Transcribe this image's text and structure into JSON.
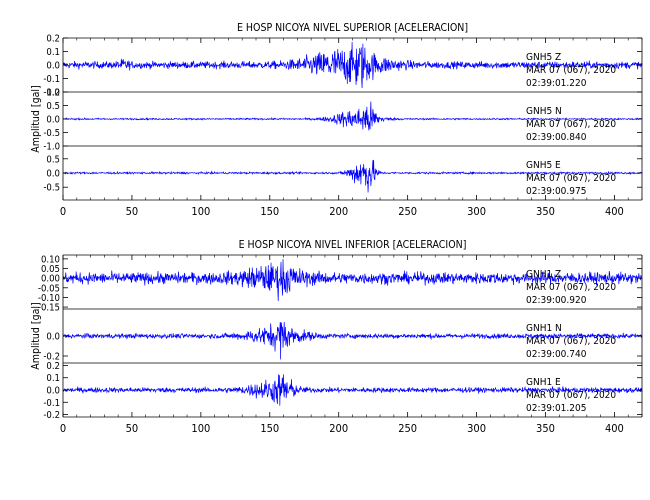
{
  "chart_data": [
    {
      "type": "line",
      "title": "E HOSP NICOYA NIVEL SUPERIOR [ACELERACION]",
      "ylabel": "Amplitud [gal]",
      "xlim": [
        0,
        420
      ],
      "x_ticks": [
        0,
        50,
        100,
        150,
        200,
        250,
        300,
        350,
        400
      ],
      "line_color": "#0000ff",
      "traces": [
        {
          "station": "GNH5",
          "component": "Z",
          "date": "MAR 07 (067), 2020",
          "time": "02:39:01.220",
          "ylim": [
            -0.2,
            0.2
          ],
          "y_ticks": [
            "0.2",
            "0.1",
            "0.0",
            "-0.1",
            "-0.2"
          ],
          "noise": 0.028,
          "peak_amp": 0.17,
          "bursts": [
            {
              "center": 44,
              "width": 4,
              "amp": 0.025
            },
            {
              "center": 205,
              "width": 28,
              "amp": 0.12
            },
            {
              "center": 215,
              "width": 6,
              "amp": 0.08
            }
          ]
        },
        {
          "station": "GNH5",
          "component": "N",
          "date": "MAR 07 (067), 2020",
          "time": "02:39:00.840",
          "ylim": [
            -1.0,
            1.0
          ],
          "y_ticks": [
            "1.0",
            "0.5",
            "0.0",
            "-0.5",
            "-1.0"
          ],
          "noise": 0.03,
          "peak_amp": 0.75,
          "bursts": [
            {
              "center": 212,
              "width": 16,
              "amp": 0.38
            },
            {
              "center": 222,
              "width": 5,
              "amp": 0.42
            }
          ]
        },
        {
          "station": "GNH5",
          "component": "E",
          "date": "MAR 07 (067), 2020",
          "time": "02:39:00.975",
          "ylim": [
            -0.95,
            0.95
          ],
          "y_ticks": [
            "0.5",
            "0.0",
            "-0.5"
          ],
          "noise": 0.035,
          "peak_amp": 0.85,
          "bursts": [
            {
              "center": 215,
              "width": 8,
              "amp": 0.45
            },
            {
              "center": 222,
              "width": 5,
              "amp": 0.5
            }
          ]
        }
      ]
    },
    {
      "type": "line",
      "title": "E HOSP NICOYA NIVEL INFERIOR [ACELERACION]",
      "ylabel": "Amplitud [gal]",
      "xlim": [
        0,
        420
      ],
      "x_ticks": [
        0,
        50,
        100,
        150,
        200,
        250,
        300,
        350,
        400
      ],
      "line_color": "#0000ff",
      "traces": [
        {
          "station": "GNH1",
          "component": "Z",
          "date": "MAR 07 (067), 2020",
          "time": "02:39:00.920",
          "ylim": [
            -0.16,
            0.12
          ],
          "y_ticks": [
            "0.10",
            "0.05",
            "0.00",
            "-0.05",
            "-0.10",
            "-0.15"
          ],
          "noise": 0.032,
          "peak_amp": 0.12,
          "bursts": [
            {
              "center": 152,
              "width": 22,
              "amp": 0.05
            },
            {
              "center": 160,
              "width": 5,
              "amp": 0.035
            }
          ]
        },
        {
          "station": "GNH1",
          "component": "N",
          "date": "MAR 07 (067), 2020",
          "time": "02:39:00.740",
          "ylim": [
            -0.27,
            0.27
          ],
          "y_ticks": [
            "0.0",
            "-0.2"
          ],
          "noise": 0.025,
          "peak_amp": 0.25,
          "bursts": [
            {
              "center": 155,
              "width": 20,
              "amp": 0.1
            },
            {
              "center": 158,
              "width": 4,
              "amp": 0.1
            }
          ]
        },
        {
          "station": "GNH1",
          "component": "E",
          "date": "MAR 07 (067), 2020",
          "time": "02:39:01.205",
          "ylim": [
            -0.22,
            0.22
          ],
          "y_ticks": [
            "0.2",
            "0.1",
            "0.0",
            "-0.1",
            "-0.2"
          ],
          "noise": 0.022,
          "peak_amp": 0.2,
          "bursts": [
            {
              "center": 150,
              "width": 16,
              "amp": 0.07
            },
            {
              "center": 160,
              "width": 6,
              "amp": 0.1
            }
          ]
        }
      ]
    }
  ]
}
